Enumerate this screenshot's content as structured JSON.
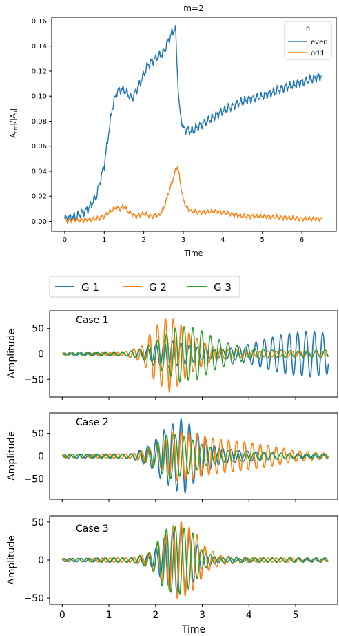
{
  "chart_data": [
    {
      "type": "line",
      "title": "m=2",
      "xlabel": "Time",
      "ylabel": "|A_nm|/|A_0|",
      "xlim": [
        -0.33,
        6.87
      ],
      "ylim": [
        -0.008,
        0.163
      ],
      "xticks": [
        0,
        1,
        2,
        3,
        4,
        5,
        6
      ],
      "yticks": [
        0.0,
        0.02,
        0.04,
        0.06,
        0.08,
        0.1,
        0.12,
        0.14,
        0.16
      ],
      "ytick_labels": [
        "0.00",
        "0.02",
        "0.04",
        "0.06",
        "0.08",
        "0.10",
        "0.12",
        "0.14",
        "0.16"
      ],
      "legend": {
        "title": "n",
        "placement": "top-right"
      },
      "series": [
        {
          "name": "even",
          "color": "#1f77b4",
          "x": [
            0.0,
            0.3,
            0.6,
            0.8,
            1.0,
            1.1,
            1.2,
            1.3,
            1.4,
            1.5,
            1.7,
            1.9,
            2.1,
            2.3,
            2.5,
            2.7,
            2.8,
            2.85,
            2.9,
            3.0,
            3.2,
            3.5,
            4.0,
            4.5,
            5.0,
            5.5,
            6.0,
            6.5
          ],
          "y": [
            0.002,
            0.004,
            0.01,
            0.02,
            0.045,
            0.068,
            0.09,
            0.102,
            0.105,
            0.105,
            0.098,
            0.11,
            0.125,
            0.13,
            0.135,
            0.15,
            0.154,
            0.12,
            0.09,
            0.074,
            0.072,
            0.078,
            0.088,
            0.096,
            0.1,
            0.106,
            0.111,
            0.116
          ]
        },
        {
          "name": "odd",
          "color": "#ff7f0e",
          "x": [
            0.0,
            0.5,
            0.8,
            1.0,
            1.2,
            1.3,
            1.4,
            1.5,
            1.6,
            1.8,
            2.0,
            2.2,
            2.4,
            2.5,
            2.6,
            2.7,
            2.8,
            2.85,
            2.9,
            3.0,
            3.1,
            3.2,
            3.5,
            3.8,
            4.0,
            4.5,
            5.0,
            5.5,
            6.0,
            6.5
          ],
          "y": [
            0.001,
            0.001,
            0.002,
            0.004,
            0.009,
            0.011,
            0.01,
            0.012,
            0.008,
            0.004,
            0.006,
            0.004,
            0.005,
            0.01,
            0.02,
            0.03,
            0.04,
            0.044,
            0.036,
            0.017,
            0.01,
            0.008,
            0.007,
            0.008,
            0.007,
            0.004,
            0.004,
            0.003,
            0.002,
            0.002
          ]
        }
      ]
    },
    {
      "type": "line",
      "legend": {
        "placement": "top-left",
        "entries": [
          {
            "name": "G 1",
            "color": "#1f77b4"
          },
          {
            "name": "G 2",
            "color": "#ff7f0e"
          },
          {
            "name": "G 3",
            "color": "#2ca02c"
          }
        ]
      },
      "xlabel": "Time",
      "xlim": [
        -0.27,
        5.9
      ],
      "xticks": [
        0,
        1,
        2,
        3,
        4,
        5,
        6
      ],
      "panels": [
        {
          "label": "Case 1",
          "ylabel": "Amplitude",
          "ylim": [
            -85,
            85
          ],
          "yticks": [
            -50,
            0,
            50
          ],
          "series": [
            {
              "name": "G 1",
              "frequency": 5.6,
              "envelope_t": [
                0,
                1.3,
                1.8,
                2.2,
                2.6,
                3.0,
                3.4,
                3.8,
                4.3,
                4.8,
                5.3,
                5.7
              ],
              "envelope_a": [
                2,
                3,
                10,
                28,
                20,
                12,
                8,
                14,
                28,
                40,
                45,
                40
              ]
            },
            {
              "name": "G 2",
              "frequency": 5.9,
              "envelope_t": [
                0,
                1.3,
                1.7,
                2.0,
                2.3,
                2.5,
                2.8,
                3.2,
                3.6,
                4.2,
                5.0,
                5.7
              ],
              "envelope_a": [
                2,
                3,
                15,
                55,
                75,
                60,
                35,
                15,
                8,
                6,
                5,
                5
              ]
            },
            {
              "name": "G 3",
              "frequency": 5.3,
              "envelope_t": [
                0,
                1.3,
                1.7,
                2.1,
                2.5,
                2.9,
                3.3,
                3.8,
                4.4,
                5.0,
                5.7
              ],
              "envelope_a": [
                2,
                3,
                10,
                30,
                55,
                50,
                30,
                15,
                8,
                6,
                8
              ]
            }
          ]
        },
        {
          "label": "Case 2",
          "ylabel": "Amplitude",
          "ylim": [
            -95,
            95
          ],
          "yticks": [
            -50,
            0,
            50
          ],
          "series": [
            {
              "name": "G 1",
              "frequency": 5.6,
              "envelope_t": [
                0,
                1.5,
                1.9,
                2.2,
                2.6,
                2.9,
                3.3,
                3.8,
                4.4,
                5.0,
                5.7
              ],
              "envelope_a": [
                4,
                5,
                25,
                60,
                85,
                50,
                20,
                12,
                8,
                5,
                4
              ]
            },
            {
              "name": "G 2",
              "frequency": 5.9,
              "envelope_t": [
                0,
                1.5,
                2.0,
                2.4,
                2.8,
                3.2,
                3.6,
                4.0,
                4.5,
                5.0,
                5.7
              ],
              "envelope_a": [
                4,
                5,
                20,
                55,
                50,
                40,
                35,
                30,
                22,
                12,
                6
              ]
            },
            {
              "name": "G 3",
              "frequency": 5.3,
              "envelope_t": [
                0,
                1.5,
                1.9,
                2.3,
                2.7,
                3.1,
                3.6,
                4.2,
                5.0,
                5.7
              ],
              "envelope_a": [
                3,
                4,
                20,
                50,
                40,
                20,
                12,
                8,
                5,
                4
              ]
            }
          ]
        },
        {
          "label": "Case 3",
          "ylabel": "Amplitude",
          "ylim": [
            -58,
            58
          ],
          "yticks": [
            -50,
            0,
            50
          ],
          "series": [
            {
              "name": "G 1",
              "frequency": 5.6,
              "envelope_t": [
                0,
                1.5,
                1.9,
                2.2,
                2.5,
                2.8,
                3.0,
                3.3,
                3.8,
                4.5,
                5.7
              ],
              "envelope_a": [
                2,
                3,
                8,
                30,
                45,
                30,
                10,
                4,
                2,
                2,
                2
              ]
            },
            {
              "name": "G 2",
              "frequency": 5.9,
              "envelope_t": [
                0,
                1.5,
                1.9,
                2.2,
                2.5,
                2.8,
                3.1,
                3.4,
                4.0,
                5.7
              ],
              "envelope_a": [
                2,
                3,
                10,
                35,
                52,
                40,
                15,
                6,
                3,
                2
              ]
            },
            {
              "name": "G 3",
              "frequency": 5.3,
              "envelope_t": [
                0,
                1.5,
                1.9,
                2.2,
                2.5,
                2.8,
                3.0,
                3.3,
                4.0,
                5.7
              ],
              "envelope_a": [
                2,
                3,
                10,
                40,
                45,
                35,
                12,
                4,
                3,
                3
              ]
            }
          ]
        }
      ]
    }
  ]
}
